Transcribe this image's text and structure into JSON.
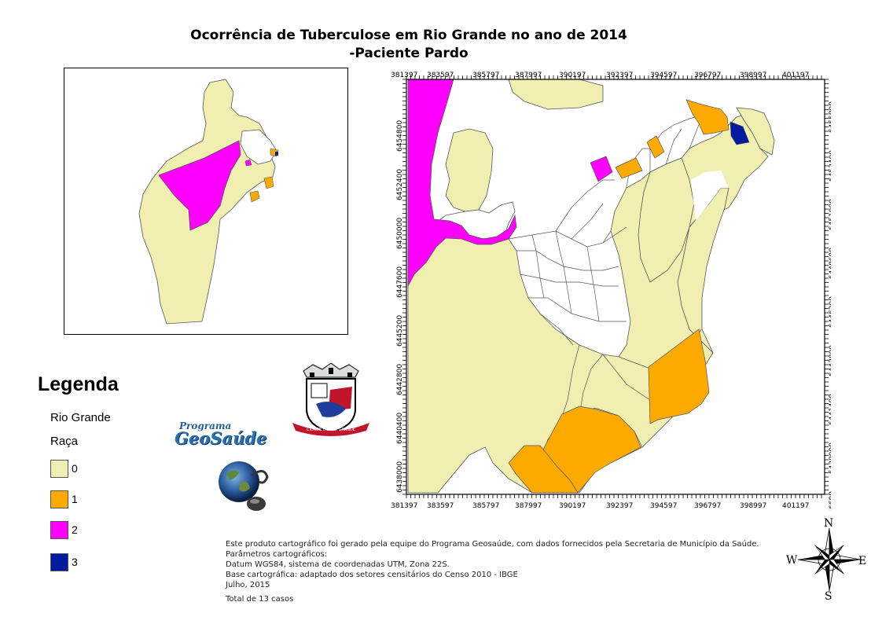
{
  "title": {
    "line1": "Ocorrência de Tuberculose em Rio Grande no ano de 2014",
    "line2": "-Paciente Pardo"
  },
  "legend": {
    "heading": "Legenda",
    "layer": "Rio Grande",
    "field": "Raça",
    "items": [
      {
        "label": "0",
        "color": "#f0eeb0"
      },
      {
        "label": "1",
        "color": "#ffaa00"
      },
      {
        "label": "2",
        "color": "#ff00ff"
      },
      {
        "label": "3",
        "color": "#001aa0"
      }
    ]
  },
  "colors": {
    "class0": "#f0eeb0",
    "class1": "#ffaa00",
    "class2": "#ff00ff",
    "class3": "#001aa0",
    "boundary": "#555555"
  },
  "logos": {
    "program_top": "Programa",
    "program_name": "GeoSaúde",
    "seal_ribbon": "CIDADE DO RIO GRANDE"
  },
  "axes": {
    "x_ticks": [
      "381397",
      "383597",
      "385797",
      "387997",
      "390197",
      "392397",
      "394597",
      "396797",
      "398997",
      "401197"
    ],
    "y_ticks_left": [
      "6454800",
      "6452400",
      "6450000",
      "6447600",
      "6445200",
      "6442800",
      "6440400",
      "6438000"
    ],
    "y_ticks_right": [
      "6455800",
      "6453400",
      "6451000",
      "6448600",
      "6446200",
      "6443800",
      "6441400",
      "6439000",
      "6436600"
    ]
  },
  "notes": {
    "line1": "Este produto cartográfico foi gerado pela equipe do Programa Geosaúde, com dados fornecidos pela Secretaria de Município da Saúde.",
    "line2": "Parâmetros cartográficos:",
    "line3": "Datum WGS84, sistema de coordenadas UTM, Zona 22S.",
    "line4": "Base cartográfica: adaptado dos setores censitários do Censo 2010 - IBGE",
    "line5": "Julho, 2015",
    "total": "Total de 13 casos"
  },
  "compass": {
    "n": "N",
    "s": "S",
    "e": "E",
    "w": "W"
  }
}
